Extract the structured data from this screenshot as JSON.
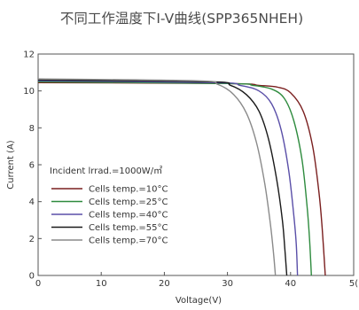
{
  "chart_data": {
    "type": "line",
    "title": "不同工作温度下I-V曲线(SPP365NHEH)",
    "xlabel": "Voltage(V)",
    "ylabel": "Current (A)",
    "xlim": [
      0,
      50
    ],
    "ylim": [
      0,
      12
    ],
    "x_ticks": [
      "0",
      "10",
      "20",
      "30",
      "40",
      "5("
    ],
    "y_ticks": [
      "0",
      "2",
      "4",
      "6",
      "8",
      "10",
      "12"
    ],
    "grid": false,
    "legend_title": "Incident lrrad.=1000W/㎡",
    "legend_position": "lower-left",
    "series": [
      {
        "name": "Cells temp.=10°C",
        "color": "#7a1f1f",
        "isc": 10.45,
        "voc": 45.5,
        "points": [
          [
            0,
            10.45
          ],
          [
            30,
            10.4
          ],
          [
            35,
            10.3
          ],
          [
            38,
            10.2
          ],
          [
            40,
            9.9
          ],
          [
            42,
            8.9
          ],
          [
            43.5,
            7.0
          ],
          [
            44.5,
            4.5
          ],
          [
            45,
            2.6
          ],
          [
            45.5,
            0
          ]
        ]
      },
      {
        "name": "Cells temp.=25°C",
        "color": "#2e8b3e",
        "isc": 10.5,
        "voc": 43.3,
        "points": [
          [
            0,
            10.5
          ],
          [
            30,
            10.4
          ],
          [
            34,
            10.3
          ],
          [
            37,
            10.1
          ],
          [
            39,
            9.6
          ],
          [
            40.5,
            8.4
          ],
          [
            41.8,
            6.3
          ],
          [
            42.6,
            3.8
          ],
          [
            43,
            2.0
          ],
          [
            43.3,
            0
          ]
        ]
      },
      {
        "name": "Cells temp.=40°C",
        "color": "#5a4fa8",
        "isc": 10.55,
        "voc": 41.1,
        "points": [
          [
            0,
            10.55
          ],
          [
            28,
            10.45
          ],
          [
            32,
            10.3
          ],
          [
            35,
            10.0
          ],
          [
            37,
            9.3
          ],
          [
            38.5,
            7.9
          ],
          [
            39.7,
            5.7
          ],
          [
            40.5,
            3.3
          ],
          [
            40.9,
            1.7
          ],
          [
            41.1,
            0
          ]
        ]
      },
      {
        "name": "Cells temp.=55°C",
        "color": "#1a1a1a",
        "isc": 10.6,
        "voc": 39.4,
        "points": [
          [
            0,
            10.6
          ],
          [
            27,
            10.5
          ],
          [
            30.5,
            10.3
          ],
          [
            33,
            9.8
          ],
          [
            35,
            8.9
          ],
          [
            36.5,
            7.4
          ],
          [
            37.8,
            5.2
          ],
          [
            38.7,
            3.0
          ],
          [
            39.1,
            1.4
          ],
          [
            39.4,
            0
          ]
        ]
      },
      {
        "name": "Cells temp.=70°C",
        "color": "#8a8a8a",
        "isc": 10.65,
        "voc": 37.6,
        "points": [
          [
            0,
            10.65
          ],
          [
            25,
            10.55
          ],
          [
            28.5,
            10.35
          ],
          [
            31,
            9.8
          ],
          [
            33,
            8.8
          ],
          [
            34.6,
            7.2
          ],
          [
            35.9,
            5.0
          ],
          [
            36.8,
            2.8
          ],
          [
            37.3,
            1.2
          ],
          [
            37.6,
            0
          ]
        ]
      }
    ]
  }
}
